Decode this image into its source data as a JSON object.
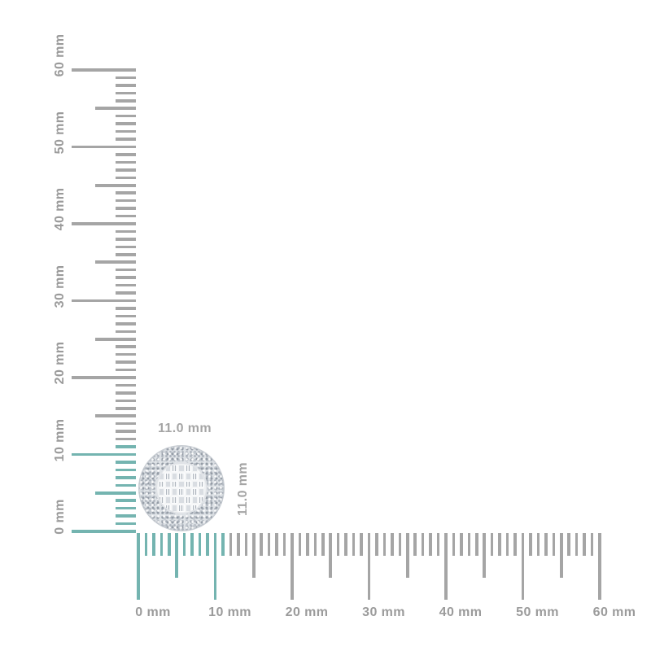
{
  "figure": {
    "background_color": "#ffffff",
    "unit": "mm"
  },
  "vertical_ruler": {
    "orientation": "vertical",
    "unit": "mm",
    "min_mm": 0,
    "max_mm": 60,
    "minor_step_mm": 1,
    "mid_step_mm": 5,
    "major_step_mm": 10,
    "labels": [
      "0 mm",
      "10 mm",
      "20 mm",
      "30 mm",
      "40 mm",
      "50 mm",
      "60 mm"
    ],
    "highlighted_range_mm": [
      0,
      11
    ],
    "tick_color": "#a5a5a5",
    "highlight_color": "#74b4b0",
    "label_color": "#9b9b9b"
  },
  "horizontal_ruler": {
    "orientation": "horizontal",
    "unit": "mm",
    "min_mm": 0,
    "max_mm": 60,
    "minor_step_mm": 1,
    "mid_step_mm": 5,
    "major_step_mm": 10,
    "labels": [
      "0 mm",
      "10 mm",
      "20 mm",
      "30 mm",
      "40 mm",
      "50 mm",
      "60 mm"
    ],
    "highlighted_range_mm": [
      0,
      11
    ],
    "tick_color": "#a5a5a5",
    "highlight_color": "#74b4b0",
    "label_color": "#9b9b9b"
  },
  "product": {
    "item": "round-diamond-cluster-stud-earring",
    "width_label": "11.0 mm",
    "height_label": "11.0 mm",
    "diameter_mm": 11.0,
    "dimension_label_color": "#a5a5a5"
  }
}
